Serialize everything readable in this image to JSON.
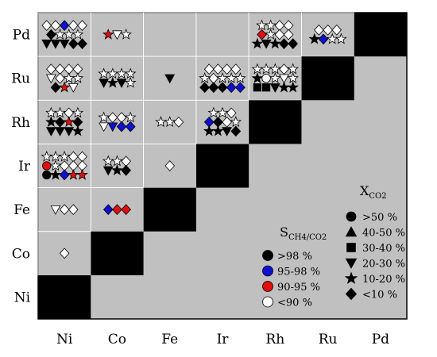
{
  "chart_data": {
    "type": "heatmap",
    "columns": [
      "Ni",
      "Co",
      "Fe",
      "Ir",
      "Rh",
      "Ru",
      "Pd"
    ],
    "rows": [
      "Pd",
      "Ru",
      "Rh",
      "Ir",
      "Fe",
      "Co",
      "Ni"
    ],
    "legend_selectivity": {
      "title_main": "S",
      "title_sub": "CH4/CO2",
      "items": [
        {
          "label": ">98 %",
          "color": "#000000"
        },
        {
          "label": "95-98 %",
          "color": "#1010d0"
        },
        {
          "label": "90-95 %",
          "color": "#e01010"
        },
        {
          "label": "<90 %",
          "color": "#ffffff"
        }
      ]
    },
    "legend_conversion": {
      "title_main": "X",
      "title_sub": "CO2",
      "items": [
        {
          "label": ">50 %",
          "shape": "circle"
        },
        {
          "label": "40-50 %",
          "shape": "triangle-up"
        },
        {
          "label": "30-40 %",
          "shape": "square"
        },
        {
          "label": "20-30 %",
          "shape": "triangle-down"
        },
        {
          "label": "10-20 %",
          "shape": "star"
        },
        {
          "label": "<10 %",
          "shape": "diamond"
        }
      ]
    },
    "cells": [
      {
        "row": "Pd",
        "col": "Ni",
        "rows": [
          [
            "Dw",
            "Dw",
            "Db",
            "Dw",
            "Dw"
          ],
          [
            "Dk",
            "Sw",
            "Sw",
            "Sw"
          ],
          [
            "Vk",
            "Vk",
            "Vk",
            "Dk",
            "Dk"
          ]
        ]
      },
      {
        "row": "Pd",
        "col": "Co",
        "rows": [
          [
            "Sr",
            "Vw",
            "Sw"
          ]
        ]
      },
      {
        "row": "Pd",
        "col": "Rh",
        "rows": [
          [
            "Sw",
            "Sw",
            "Dw",
            "Dw"
          ],
          [
            "Dr",
            "Sw",
            "Dw",
            "Dw"
          ],
          [
            "Sk",
            "Vk",
            "Sk",
            "Dk",
            "Dk"
          ]
        ]
      },
      {
        "row": "Pd",
        "col": "Ru",
        "rows": [
          [
            "Dw",
            "Dw",
            "Dw"
          ],
          [
            "Sk",
            "Db",
            "Sw",
            "Sw"
          ]
        ]
      },
      {
        "row": "Ru",
        "col": "Ni",
        "rows": [
          [
            "Dw",
            "Dw",
            "Dw",
            "Dw"
          ],
          [
            "Vw",
            "Dw",
            "Sw",
            "Sw"
          ],
          [
            "Dk",
            "Sr",
            "Vw"
          ]
        ]
      },
      {
        "row": "Ru",
        "col": "Co",
        "rows": [
          [
            "Sw",
            "Sw",
            "Sw",
            "Sw"
          ],
          [
            "Vk",
            "Sk",
            "Vk",
            "Sw"
          ]
        ]
      },
      {
        "row": "Ru",
        "col": "Fe",
        "rows": [
          [
            "Vk"
          ]
        ]
      },
      {
        "row": "Ru",
        "col": "Ir",
        "rows": [
          [
            "Dw",
            "Dw",
            "Dw",
            "Dw"
          ],
          [
            "Sw",
            "Dw",
            "Sw",
            "Sw",
            "Sw"
          ],
          [
            "Dk",
            "Dk",
            "Dk",
            "Db",
            "Db"
          ]
        ]
      },
      {
        "row": "Ru",
        "col": "Rh",
        "rows": [
          [
            "Sw",
            "Sw",
            "Sw",
            "Dw",
            "Sw"
          ],
          [
            "Sk",
            "Cw",
            "Sw",
            "Vw",
            "Sw"
          ],
          [
            "Qk",
            "Qk",
            "Vk",
            "Sk",
            "Sk"
          ]
        ]
      },
      {
        "row": "Rh",
        "col": "Ni",
        "rows": [
          [
            "Sw",
            "Sw",
            "Dw",
            "Sw"
          ],
          [
            "Sk",
            "Dk",
            "Sr",
            "Dk"
          ],
          [
            "Vk",
            "Vk",
            "Vk",
            "Sk"
          ]
        ]
      },
      {
        "row": "Rh",
        "col": "Co",
        "rows": [
          [
            "Sw",
            "Dw",
            "Dw",
            "Sw"
          ],
          [
            "Vw",
            "Vb",
            "Db",
            "Db"
          ]
        ]
      },
      {
        "row": "Rh",
        "col": "Fe",
        "rows": [
          [
            "Sw",
            "Sw",
            "Dw"
          ]
        ]
      },
      {
        "row": "Rh",
        "col": "Ir",
        "rows": [
          [
            "Sw",
            "Sw",
            "Dw"
          ],
          [
            "Db",
            "Dk",
            "Dw",
            "Sw"
          ],
          [
            "Sk",
            "Sk",
            "Vk",
            "Dk"
          ]
        ]
      },
      {
        "row": "Ir",
        "col": "Ni",
        "rows": [
          [
            "Sw",
            "Sw",
            "Sw",
            "Dw",
            "Dw"
          ],
          [
            "Cr",
            "Sw",
            "Dw",
            "Dw",
            "Dw"
          ],
          [
            "Ck",
            "Sk",
            "Db",
            "Sr",
            "Sr"
          ]
        ]
      },
      {
        "row": "Ir",
        "col": "Co",
        "rows": [
          [
            "Sw",
            "Sw",
            "Dw"
          ],
          [
            "Vk",
            "Sk",
            "Dk"
          ]
        ]
      },
      {
        "row": "Ir",
        "col": "Fe",
        "rows": [
          [
            "Dw"
          ]
        ]
      },
      {
        "row": "Fe",
        "col": "Ni",
        "rows": [
          [
            "Vw",
            "Dw",
            "Dw"
          ]
        ]
      },
      {
        "row": "Fe",
        "col": "Co",
        "rows": [
          [
            "Db",
            "Dr",
            "Dr"
          ]
        ]
      },
      {
        "row": "Co",
        "col": "Ni",
        "rows": [
          [
            "Dw"
          ]
        ]
      }
    ]
  }
}
